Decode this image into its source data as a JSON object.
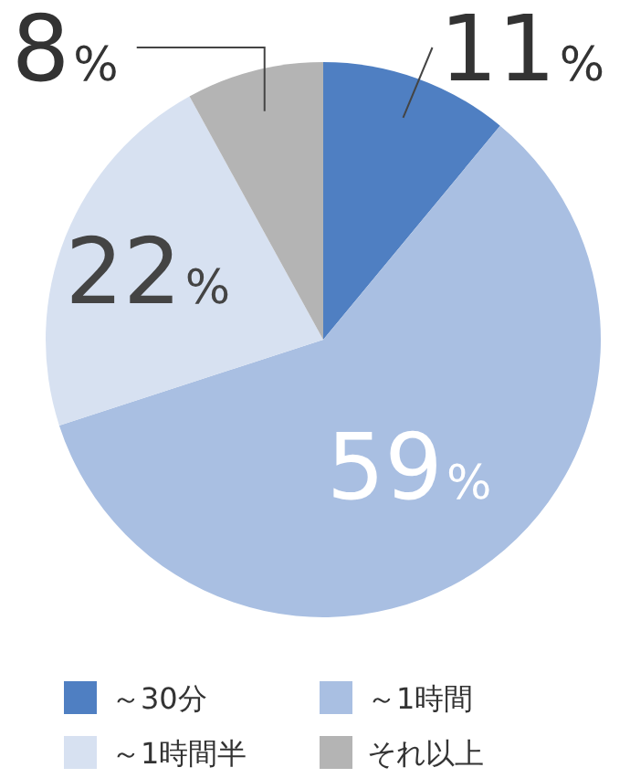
{
  "chart_data": {
    "type": "pie",
    "categories": [
      "～30分",
      "～1時間",
      "～1時間半",
      "それ以上"
    ],
    "values": [
      11,
      59,
      22,
      8
    ],
    "colors": [
      "#4f7fc2",
      "#a9bfe2",
      "#d7e1f1",
      "#b4b4b4"
    ],
    "value_labels": [
      "11%",
      "59%",
      "22%",
      "8%"
    ],
    "legend": "bottom"
  }
}
